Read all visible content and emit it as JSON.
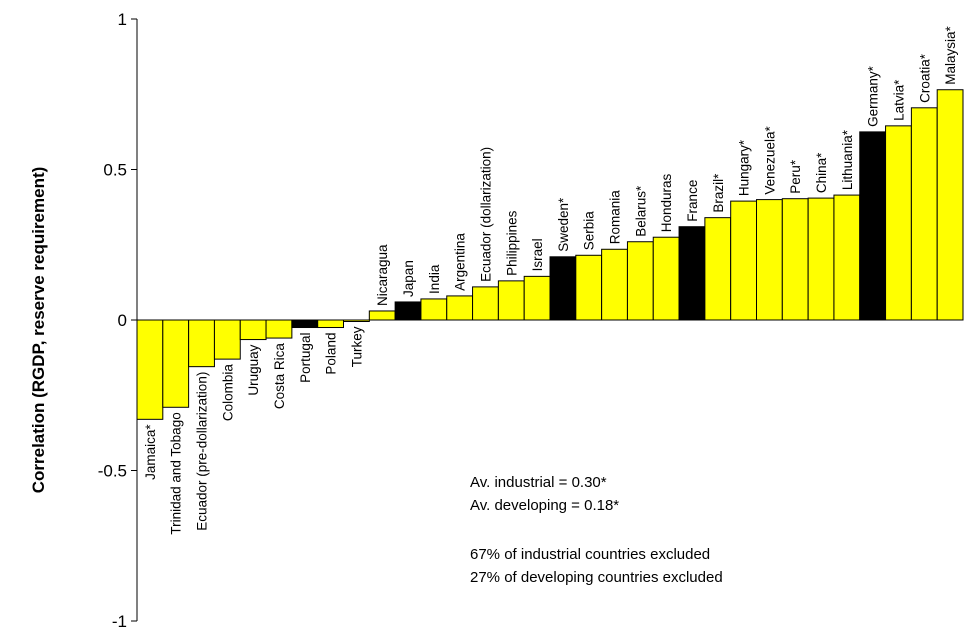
{
  "chart_data": {
    "type": "bar",
    "title": "",
    "xlabel": "",
    "ylabel": "Correlation (RGDP, reserve requirement)",
    "ylim": [
      -1,
      1
    ],
    "yticks": [
      1,
      0.5,
      0,
      -0.5,
      -1
    ],
    "ytick_labels": [
      "1",
      "0.5",
      "0",
      "-0.5",
      "-1"
    ],
    "grid": false,
    "legend": "none",
    "colors": {
      "developing": "#ffff00",
      "industrial": "#000000",
      "edge": "#000000"
    },
    "categories": [
      "Jamaica*",
      "Trinidad and Tobago",
      "Ecuador (pre-dollarization)",
      "Colombia",
      "Uruguay",
      "Costa Rica",
      "Portugal",
      "Poland",
      "Turkey",
      "Nicaragua",
      "Japan",
      "India",
      "Argentina",
      "Ecuador (dollarization)",
      "Philippines",
      "Israel",
      "Sweden*",
      "Serbia",
      "Romania",
      "Belarus*",
      "Honduras",
      "France",
      "Brazil*",
      "Hungary*",
      "Venezuela*",
      "Peru*",
      "China*",
      "Lithuania*",
      "Germany*",
      "Latvia*",
      "Croatia*",
      "Malaysia*"
    ],
    "values": [
      -0.33,
      -0.29,
      -0.155,
      -0.13,
      -0.065,
      -0.06,
      -0.025,
      -0.025,
      -0.005,
      0.03,
      0.06,
      0.07,
      0.08,
      0.11,
      0.13,
      0.145,
      0.21,
      0.215,
      0.235,
      0.26,
      0.275,
      0.31,
      0.34,
      0.395,
      0.4,
      0.403,
      0.405,
      0.415,
      0.625,
      0.645,
      0.705,
      0.765
    ],
    "groups": [
      "developing",
      "developing",
      "developing",
      "developing",
      "developing",
      "developing",
      "industrial",
      "developing",
      "developing",
      "developing",
      "industrial",
      "developing",
      "developing",
      "developing",
      "developing",
      "developing",
      "industrial",
      "developing",
      "developing",
      "developing",
      "developing",
      "industrial",
      "developing",
      "developing",
      "developing",
      "developing",
      "developing",
      "developing",
      "industrial",
      "developing",
      "developing",
      "developing"
    ],
    "annotations": [
      "Av. industrial = 0.30*",
      "Av. developing = 0.18*",
      "67% of industrial countries excluded",
      "27% of developing countries excluded"
    ]
  }
}
